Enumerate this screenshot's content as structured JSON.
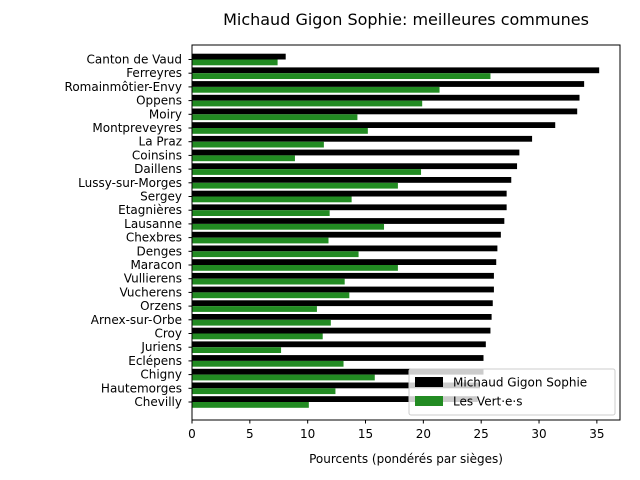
{
  "chart_data": {
    "type": "bar",
    "orientation": "horizontal",
    "title": "Michaud Gigon Sophie: meilleures communes",
    "xlabel": "Pourcents (pondérés par sièges)",
    "ylabel": "",
    "xlim": [
      0,
      37
    ],
    "xticks": [
      0,
      5,
      10,
      15,
      20,
      25,
      30,
      35
    ],
    "grid": false,
    "legend_position": "lower-right",
    "categories": [
      "Canton de Vaud",
      "Ferreyres",
      "Romainmôtier-Envy",
      "Oppens",
      "Moiry",
      "Montpreveyres",
      "La Praz",
      "Coinsins",
      "Daillens",
      "Lussy-sur-Morges",
      "Sergey",
      "Etagnières",
      "Lausanne",
      "Chexbres",
      "Denges",
      "Maracon",
      "Vullierens",
      "Vucherens",
      "Orzens",
      "Arnex-sur-Orbe",
      "Croy",
      "Juriens",
      "Eclépens",
      "Chigny",
      "Hautemorges",
      "Chevilly"
    ],
    "series": [
      {
        "name": "Michaud Gigon Sophie",
        "color": "#000000",
        "values": [
          8.1,
          35.2,
          33.9,
          33.5,
          33.3,
          31.4,
          29.4,
          28.3,
          28.1,
          27.6,
          27.2,
          27.2,
          27.0,
          26.7,
          26.4,
          26.3,
          26.1,
          26.1,
          26.0,
          25.9,
          25.8,
          25.4,
          25.2,
          25.2,
          24.9,
          24.7
        ]
      },
      {
        "name": "Les Vert·e·s",
        "color": "#228b22",
        "values": [
          7.4,
          25.8,
          21.4,
          19.9,
          14.3,
          15.2,
          11.4,
          8.9,
          19.8,
          17.8,
          13.8,
          11.9,
          16.6,
          11.8,
          14.4,
          17.8,
          13.2,
          13.6,
          10.8,
          12.0,
          11.3,
          7.7,
          13.1,
          15.8,
          12.4,
          10.1
        ]
      }
    ]
  }
}
